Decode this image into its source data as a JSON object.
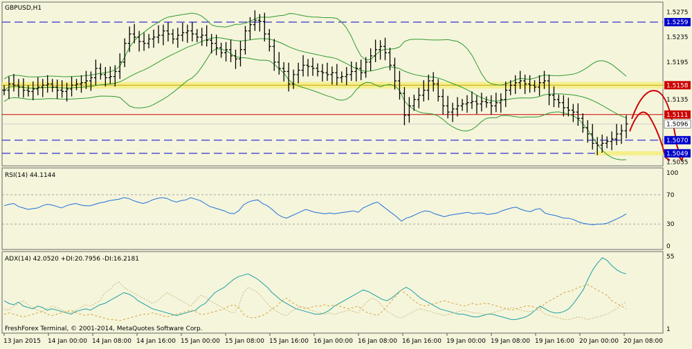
{
  "chart_data": [
    {
      "type": "candlestick",
      "title": "GBPUSD,H1",
      "y_axis_ticks": [
        1.5275,
        1.5235,
        1.5195,
        1.5135,
        1.5035
      ],
      "ylim": [
        1.503,
        1.529
      ],
      "x_tick_labels": [
        "13 Jan 2015",
        "14 Jan 00:00",
        "14 Jan 08:00",
        "14 Jan 16:00",
        "15 Jan 00:00",
        "15 Jan 08:00",
        "15 Jan 16:00",
        "16 Jan 00:00",
        "16 Jan 08:00",
        "16 Jan 16:00",
        "19 Jan 00:00",
        "19 Jan 08:00",
        "19 Jan 16:00",
        "20 Jan 00:00",
        "20 Jan 08:00"
      ],
      "levels": [
        {
          "value": 1.5259,
          "label": "1.5259",
          "style": "dashed",
          "color": "#0000cc"
        },
        {
          "value": 1.5158,
          "label": "1.5158",
          "style": "band",
          "color": "#cc0000"
        },
        {
          "value": 1.5111,
          "label": "1.5111",
          "style": "solid",
          "color": "#cc0000"
        },
        {
          "value": 1.5096,
          "label": "1.5096",
          "style": "current",
          "color": "#0000cc"
        },
        {
          "value": 1.507,
          "label": "1.5070",
          "style": "dashed",
          "color": "#0000cc"
        },
        {
          "value": 1.5049,
          "label": "1.5049",
          "style": "dashed",
          "color": "#0000cc"
        }
      ],
      "close_series": [
        1.515,
        1.516,
        1.5158,
        1.5155,
        1.515,
        1.5148,
        1.5152,
        1.5155,
        1.5158,
        1.516,
        1.5155,
        1.515,
        1.5148,
        1.5152,
        1.5158,
        1.516,
        1.5162,
        1.5165,
        1.517,
        1.5185,
        1.5175,
        1.517,
        1.5172,
        1.518,
        1.5195,
        1.5225,
        1.524,
        1.5235,
        1.5228,
        1.5225,
        1.5232,
        1.5235,
        1.5238,
        1.5245,
        1.524,
        1.5232,
        1.5238,
        1.5242,
        1.5245,
        1.524,
        1.5235,
        1.5238,
        1.523,
        1.5225,
        1.5218,
        1.521,
        1.5215,
        1.5205,
        1.52,
        1.5215,
        1.5245,
        1.5255,
        1.5262,
        1.526,
        1.524,
        1.522,
        1.5195,
        1.5185,
        1.518,
        1.516,
        1.5175,
        1.5182,
        1.519,
        1.5188,
        1.5185,
        1.518,
        1.5178,
        1.5175,
        1.5178,
        1.517,
        1.5172,
        1.5175,
        1.518,
        1.5185,
        1.5178,
        1.5195,
        1.5205,
        1.5215,
        1.522,
        1.521,
        1.519,
        1.5165,
        1.5145,
        1.511,
        1.5125,
        1.5135,
        1.5142,
        1.515,
        1.5165,
        1.516,
        1.514,
        1.5125,
        1.5115,
        1.512,
        1.5125,
        1.5128,
        1.513,
        1.5132,
        1.5128,
        1.5132,
        1.513,
        1.5125,
        1.513,
        1.5135,
        1.515,
        1.5158,
        1.5162,
        1.5165,
        1.516,
        1.5158,
        1.5155,
        1.5162,
        1.5165,
        1.5142,
        1.5135,
        1.513,
        1.5122,
        1.5118,
        1.5115,
        1.5105,
        1.509,
        1.508,
        1.5065,
        1.5062,
        1.5065,
        1.5068,
        1.5072,
        1.508,
        1.5085,
        1.5096
      ],
      "indicators": [
        "Bollinger Bands (green)"
      ]
    },
    {
      "type": "line",
      "title": "RSI(14) 44.1144",
      "ylim": [
        0,
        100
      ],
      "y_ticks": [
        100,
        70,
        30,
        0
      ],
      "levels": [
        70,
        30
      ],
      "series": [
        {
          "values": [
            55,
            57,
            58,
            54,
            52,
            50,
            51,
            52,
            55,
            57,
            56,
            54,
            52,
            55,
            57,
            58,
            56,
            55,
            55,
            57,
            59,
            60,
            62,
            63,
            64,
            66,
            65,
            62,
            60,
            58,
            60,
            63,
            65,
            66,
            65,
            62,
            60,
            62,
            63,
            66,
            64,
            62,
            58,
            54,
            52,
            50,
            48,
            45,
            44,
            48,
            56,
            60,
            62,
            63,
            58,
            55,
            50,
            44,
            40,
            38,
            41,
            44,
            47,
            50,
            48,
            46,
            45,
            44,
            45,
            44,
            45,
            46,
            47,
            48,
            46,
            52,
            55,
            58,
            60,
            55,
            50,
            45,
            40,
            34,
            38,
            40,
            43,
            46,
            48,
            47,
            44,
            42,
            40,
            42,
            43,
            44,
            45,
            46,
            44,
            45,
            45,
            43,
            44,
            45,
            48,
            50,
            52,
            53,
            50,
            48,
            47,
            50,
            51,
            45,
            43,
            42,
            40,
            38,
            38,
            36,
            33,
            31,
            30,
            29,
            30,
            30,
            31,
            34,
            37,
            40,
            44
          ]
        }
      ]
    },
    {
      "type": "line",
      "title": "ADX(14) 42.0520 +DI:20.7956 -DI:16.2181",
      "ylim": [
        1,
        55
      ],
      "y_ticks": [
        55,
        1
      ],
      "series": [
        {
          "values": [
            22,
            20,
            19,
            21,
            18,
            17,
            16,
            18,
            17,
            15,
            16,
            15,
            14,
            13,
            12,
            14,
            15,
            16,
            15,
            17,
            19,
            20,
            22,
            24,
            26,
            28,
            27,
            25,
            22,
            20,
            18,
            16,
            15,
            14,
            13,
            12,
            11,
            12,
            13,
            14,
            15,
            18,
            20,
            24,
            28,
            30,
            32,
            35,
            38,
            40,
            41,
            42,
            40,
            38,
            35,
            32,
            28,
            25,
            22,
            20,
            18,
            16,
            15,
            14,
            13,
            12,
            12,
            13,
            15,
            18,
            20,
            22,
            24,
            26,
            28,
            30,
            29,
            27,
            25,
            23,
            22,
            24,
            27,
            30,
            32,
            30,
            27,
            24,
            22,
            20,
            18,
            16,
            15,
            14,
            13,
            12,
            12,
            11,
            10,
            10,
            11,
            12,
            12,
            11,
            10,
            9,
            8,
            8,
            9,
            10,
            12,
            15,
            18,
            16,
            14,
            13,
            13,
            14,
            16,
            20,
            25,
            30,
            38,
            45,
            50,
            54,
            52,
            48,
            45,
            43,
            42
          ]
        },
        {
          "values": [
            16,
            15,
            18,
            20,
            22,
            19,
            17,
            15,
            14,
            16,
            18,
            17,
            15,
            14,
            13,
            15,
            17,
            19,
            18,
            20,
            22,
            28,
            30,
            34,
            36,
            32,
            30,
            28,
            26,
            24,
            22,
            20,
            22,
            25,
            28,
            26,
            24,
            22,
            20,
            18,
            22,
            26,
            25,
            22,
            20,
            18,
            16,
            14,
            13,
            18,
            28,
            32,
            30,
            28,
            24,
            20,
            16,
            14,
            12,
            11,
            14,
            16,
            18,
            17,
            15,
            14,
            13,
            12,
            13,
            12,
            13,
            14,
            15,
            14,
            13,
            18,
            22,
            24,
            22,
            18,
            14,
            12,
            10,
            9,
            11,
            13,
            15,
            16,
            15,
            14,
            13,
            12,
            11,
            12,
            13,
            14,
            15,
            14,
            13,
            13,
            12,
            12,
            13,
            14,
            15,
            16,
            17,
            16,
            15,
            14,
            14,
            15,
            15,
            12,
            11,
            10,
            9,
            8,
            8,
            9,
            10,
            9,
            8,
            9,
            10,
            11,
            12,
            14,
            16,
            19,
            21
          ]
        },
        {
          "values": [
            12,
            13,
            12,
            11,
            10,
            11,
            12,
            13,
            14,
            12,
            11,
            12,
            13,
            14,
            15,
            13,
            12,
            11,
            12,
            11,
            10,
            9,
            8,
            8,
            7,
            8,
            9,
            10,
            11,
            12,
            12,
            13,
            12,
            11,
            10,
            11,
            12,
            13,
            14,
            15,
            14,
            12,
            12,
            13,
            14,
            15,
            16,
            18,
            19,
            17,
            12,
            10,
            9,
            10,
            11,
            13,
            16,
            18,
            22,
            24,
            21,
            19,
            17,
            16,
            17,
            18,
            18,
            19,
            18,
            19,
            18,
            17,
            16,
            17,
            18,
            15,
            13,
            12,
            11,
            14,
            18,
            22,
            26,
            30,
            27,
            24,
            21,
            19,
            18,
            19,
            20,
            21,
            22,
            21,
            20,
            19,
            18,
            19,
            20,
            19,
            20,
            20,
            19,
            18,
            17,
            16,
            15,
            16,
            17,
            18,
            18,
            17,
            16,
            20,
            22,
            24,
            26,
            28,
            29,
            30,
            32,
            33,
            34,
            32,
            30,
            28,
            26,
            22,
            20,
            18,
            16
          ]
        }
      ]
    }
  ],
  "footer": "FreshForex Terminal, © 2001-2014, MetaQuotes Software Corp."
}
